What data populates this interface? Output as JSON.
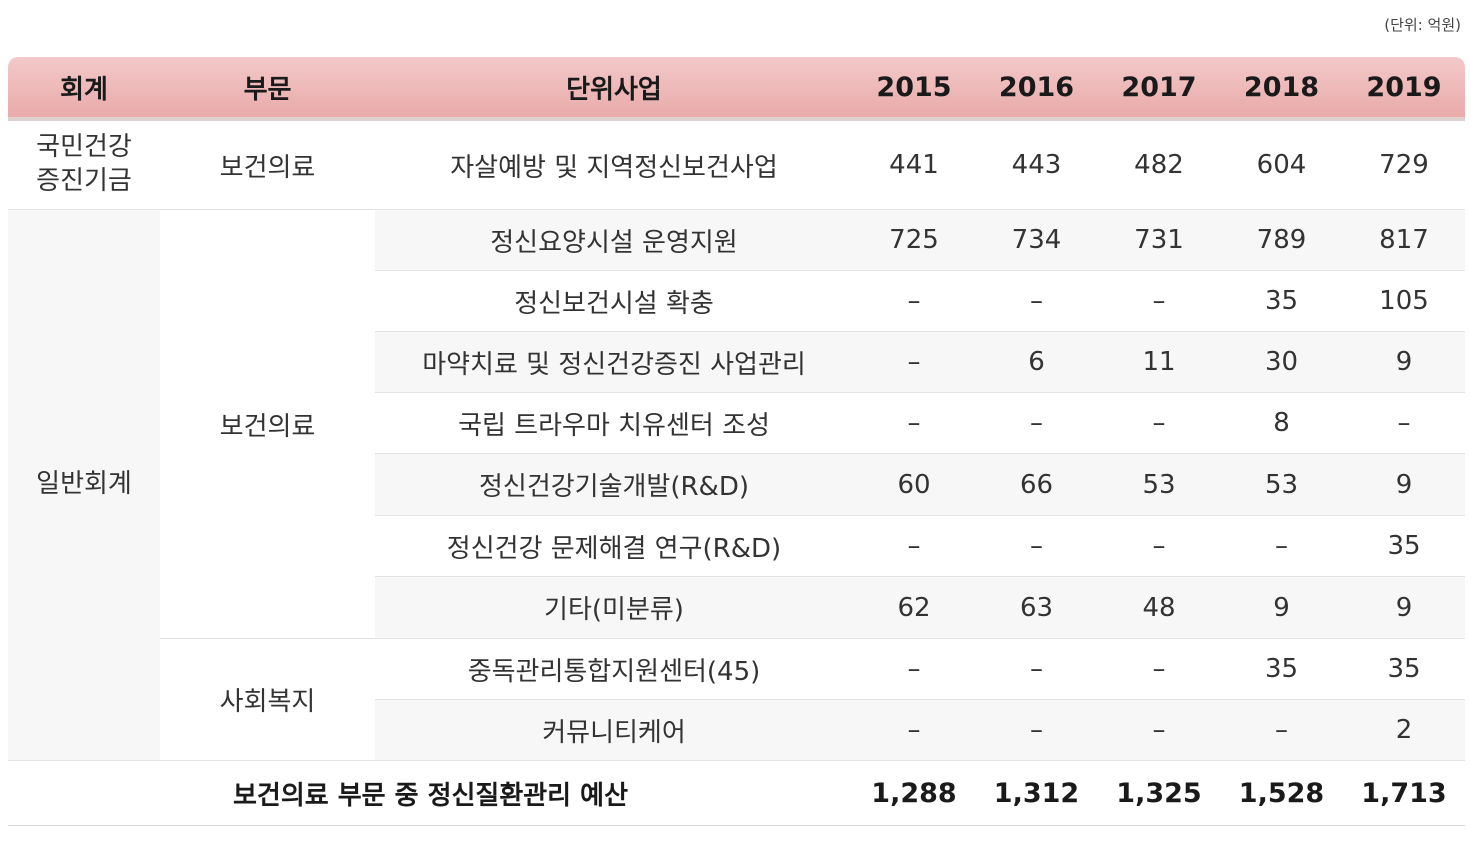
{
  "unit_label": "(단위: 억원)",
  "header": {
    "account": "회계",
    "sector": "부문",
    "program": "단위사업",
    "years": [
      "2015",
      "2016",
      "2017",
      "2018",
      "2019"
    ]
  },
  "rows": [
    {
      "account": "국민건강\n증진기금",
      "sector": "보건의료",
      "program": "자살예방 및 지역정신보건사업",
      "values": [
        "441",
        "443",
        "482",
        "604",
        "729"
      ]
    },
    {
      "account": "일반회계",
      "sector": "보건의료",
      "program": "정신요양시설 운영지원",
      "values": [
        "725",
        "734",
        "731",
        "789",
        "817"
      ]
    },
    {
      "account": "일반회계",
      "sector": "보건의료",
      "program": "정신보건시설 확충",
      "values": [
        "–",
        "–",
        "–",
        "35",
        "105"
      ]
    },
    {
      "account": "일반회계",
      "sector": "보건의료",
      "program": "마약치료 및 정신건강증진 사업관리",
      "values": [
        "–",
        "6",
        "11",
        "30",
        "9"
      ]
    },
    {
      "account": "일반회계",
      "sector": "보건의료",
      "program": "국립 트라우마 치유센터 조성",
      "values": [
        "–",
        "–",
        "–",
        "8",
        "–"
      ]
    },
    {
      "account": "일반회계",
      "sector": "보건의료",
      "program": "정신건강기술개발(R&D)",
      "values": [
        "60",
        "66",
        "53",
        "53",
        "9"
      ]
    },
    {
      "account": "일반회계",
      "sector": "보건의료",
      "program": "정신건강 문제해결 연구(R&D)",
      "values": [
        "–",
        "–",
        "–",
        "–",
        "35"
      ]
    },
    {
      "account": "일반회계",
      "sector": "보건의료",
      "program": "기타(미분류)",
      "values": [
        "62",
        "63",
        "48",
        "9",
        "9"
      ]
    },
    {
      "account": "일반회계",
      "sector": "사회복지",
      "program": "중독관리통합지원센터(45)",
      "values": [
        "–",
        "–",
        "–",
        "35",
        "35"
      ]
    },
    {
      "account": "일반회계",
      "sector": "사회복지",
      "program": "커뮤니티케어",
      "values": [
        "–",
        "–",
        "–",
        "–",
        "2"
      ]
    }
  ],
  "total": {
    "label": "보건의료 부문 중 정신질환관리 예산",
    "values": [
      "1,288",
      "1,312",
      "1,325",
      "1,528",
      "1,713"
    ]
  },
  "colors": {
    "header_top": "#f3c9c9",
    "header_bottom": "#e9aaaa",
    "row_shade": "#f7f7f7"
  }
}
